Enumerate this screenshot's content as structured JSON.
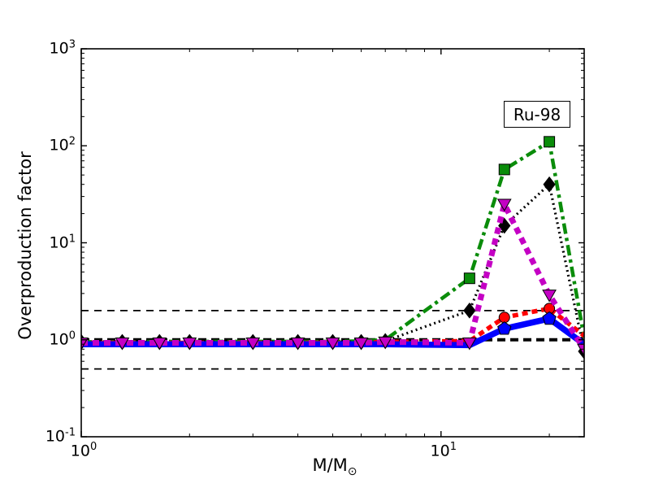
{
  "figure": {
    "title_box": "Ru-98",
    "ylabel": "Overproduction factor",
    "xlabel": "M/M",
    "xlabel_sub": "⊙"
  },
  "chart_data": {
    "type": "line",
    "title": "Ru-98",
    "xlabel": "M/M_sun",
    "ylabel": "Overproduction factor",
    "x_scale": "log",
    "y_scale": "log",
    "xlim": [
      1,
      25
    ],
    "ylim": [
      0.1,
      1000
    ],
    "x_tick_labels": [
      {
        "value": 1,
        "label": "10^0"
      },
      {
        "value": 10,
        "label": "10^1"
      }
    ],
    "x_minor_ticks": [
      2,
      3,
      4,
      5,
      6,
      7,
      8,
      9,
      20
    ],
    "y_tick_labels": [
      {
        "value": 0.1,
        "label": "10^-1"
      },
      {
        "value": 1,
        "label": "10^0"
      },
      {
        "value": 10,
        "label": "10^1"
      },
      {
        "value": 100,
        "label": "10^2"
      },
      {
        "value": 1000,
        "label": "10^3"
      }
    ],
    "grid": false,
    "legend": "none",
    "x": [
      1,
      1.3,
      1.65,
      2,
      3,
      4,
      5,
      6,
      7,
      12,
      15,
      20,
      25
    ],
    "series": [
      {
        "name": "green-dashdot-squares",
        "color": "#0a8c0a",
        "line_style": "dash-dot",
        "dash": "13 5 4 5",
        "width": 4.5,
        "marker": "square",
        "marker_at": [
          12,
          15,
          20
        ],
        "values": [
          0.95,
          0.95,
          0.96,
          0.96,
          0.96,
          0.96,
          0.96,
          0.97,
          1.0,
          4.3,
          57,
          110,
          1.05
        ]
      },
      {
        "name": "black-dotted-diamonds",
        "color": "#000000",
        "line_style": "dotted",
        "dash": "2 4",
        "width": 3.2,
        "marker": "diamond",
        "marker_at": [
          1,
          1.3,
          1.65,
          2,
          3,
          4,
          5,
          6,
          7,
          12,
          15,
          20,
          25
        ],
        "values": [
          0.95,
          0.95,
          0.95,
          0.95,
          0.95,
          0.95,
          0.95,
          0.95,
          0.97,
          2.0,
          15,
          40,
          0.76
        ]
      },
      {
        "name": "red-dashed-circles",
        "color": "#ff0000",
        "line_style": "dashed",
        "dash": "7 5",
        "width": 5.5,
        "marker": "circle",
        "marker_at": [
          15,
          20
        ],
        "values": [
          0.93,
          0.93,
          0.93,
          0.93,
          0.93,
          0.93,
          0.93,
          0.93,
          0.95,
          0.97,
          1.7,
          2.1,
          1.1
        ]
      },
      {
        "name": "blue-solid-pentagons",
        "color": "#0000ff",
        "line_style": "solid",
        "dash": "",
        "width": 7.5,
        "marker": "pentagon",
        "marker_at": [
          15,
          20
        ],
        "values": [
          0.9,
          0.9,
          0.9,
          0.9,
          0.9,
          0.9,
          0.9,
          0.9,
          0.9,
          0.88,
          1.3,
          1.65,
          0.9
        ]
      },
      {
        "name": "magenta-dashed-triangles",
        "color": "#c400c4",
        "line_style": "dashed",
        "dash": "8 6",
        "width": 7,
        "marker": "triangle-down",
        "marker_at": [
          1,
          1.3,
          1.65,
          2,
          3,
          4,
          5,
          6,
          7,
          12,
          15,
          20,
          25
        ],
        "values": [
          0.93,
          0.93,
          0.93,
          0.93,
          0.93,
          0.93,
          0.93,
          0.93,
          0.95,
          0.93,
          25,
          2.9,
          0.8
        ]
      }
    ],
    "reference_lines": [
      {
        "y": 2,
        "color": "#000000",
        "style": "thin-dashed",
        "dash": "9 7",
        "width": 1.7
      },
      {
        "y": 0.5,
        "color": "#000000",
        "style": "thin-dashed",
        "dash": "9 7",
        "width": 1.7
      },
      {
        "y": 1,
        "color": "#000000",
        "style": "thick-dashed",
        "dash": "10 6",
        "width": 4
      }
    ]
  }
}
